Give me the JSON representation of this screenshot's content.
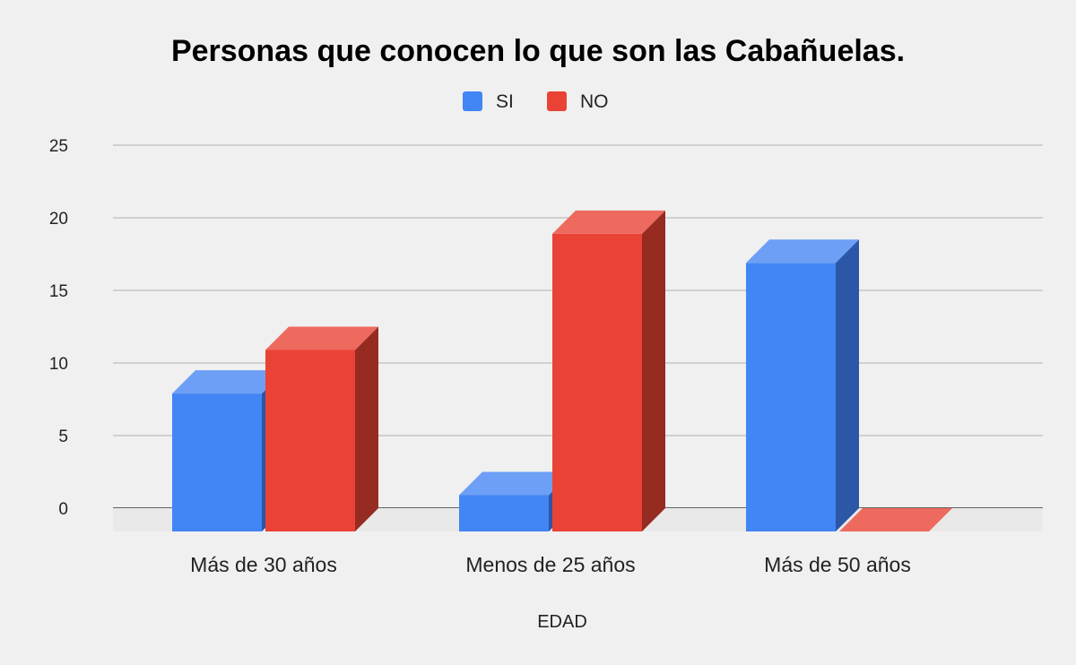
{
  "chart_data": {
    "type": "bar",
    "style": "3d",
    "title": "Personas que conocen lo que son las Cabañuelas.",
    "xlabel": "EDAD",
    "ylabel": "",
    "categories": [
      "Más de 30 años",
      "Menos de 25 años",
      "Más de 50 años"
    ],
    "series": [
      {
        "name": "SI",
        "values": [
          9.5,
          2.5,
          18.5
        ],
        "color": "#4285f4",
        "top_color": "#6d9ff6",
        "side_color": "#2b57a6"
      },
      {
        "name": "NO",
        "values": [
          12.5,
          20.5,
          0
        ],
        "color": "#ea4335",
        "top_color": "#ee6a5e",
        "side_color": "#962b22"
      }
    ],
    "ylim": [
      0,
      25
    ],
    "yticks": [
      0,
      5,
      10,
      15,
      20,
      25
    ],
    "grid": true,
    "legend_position": "top-center"
  }
}
